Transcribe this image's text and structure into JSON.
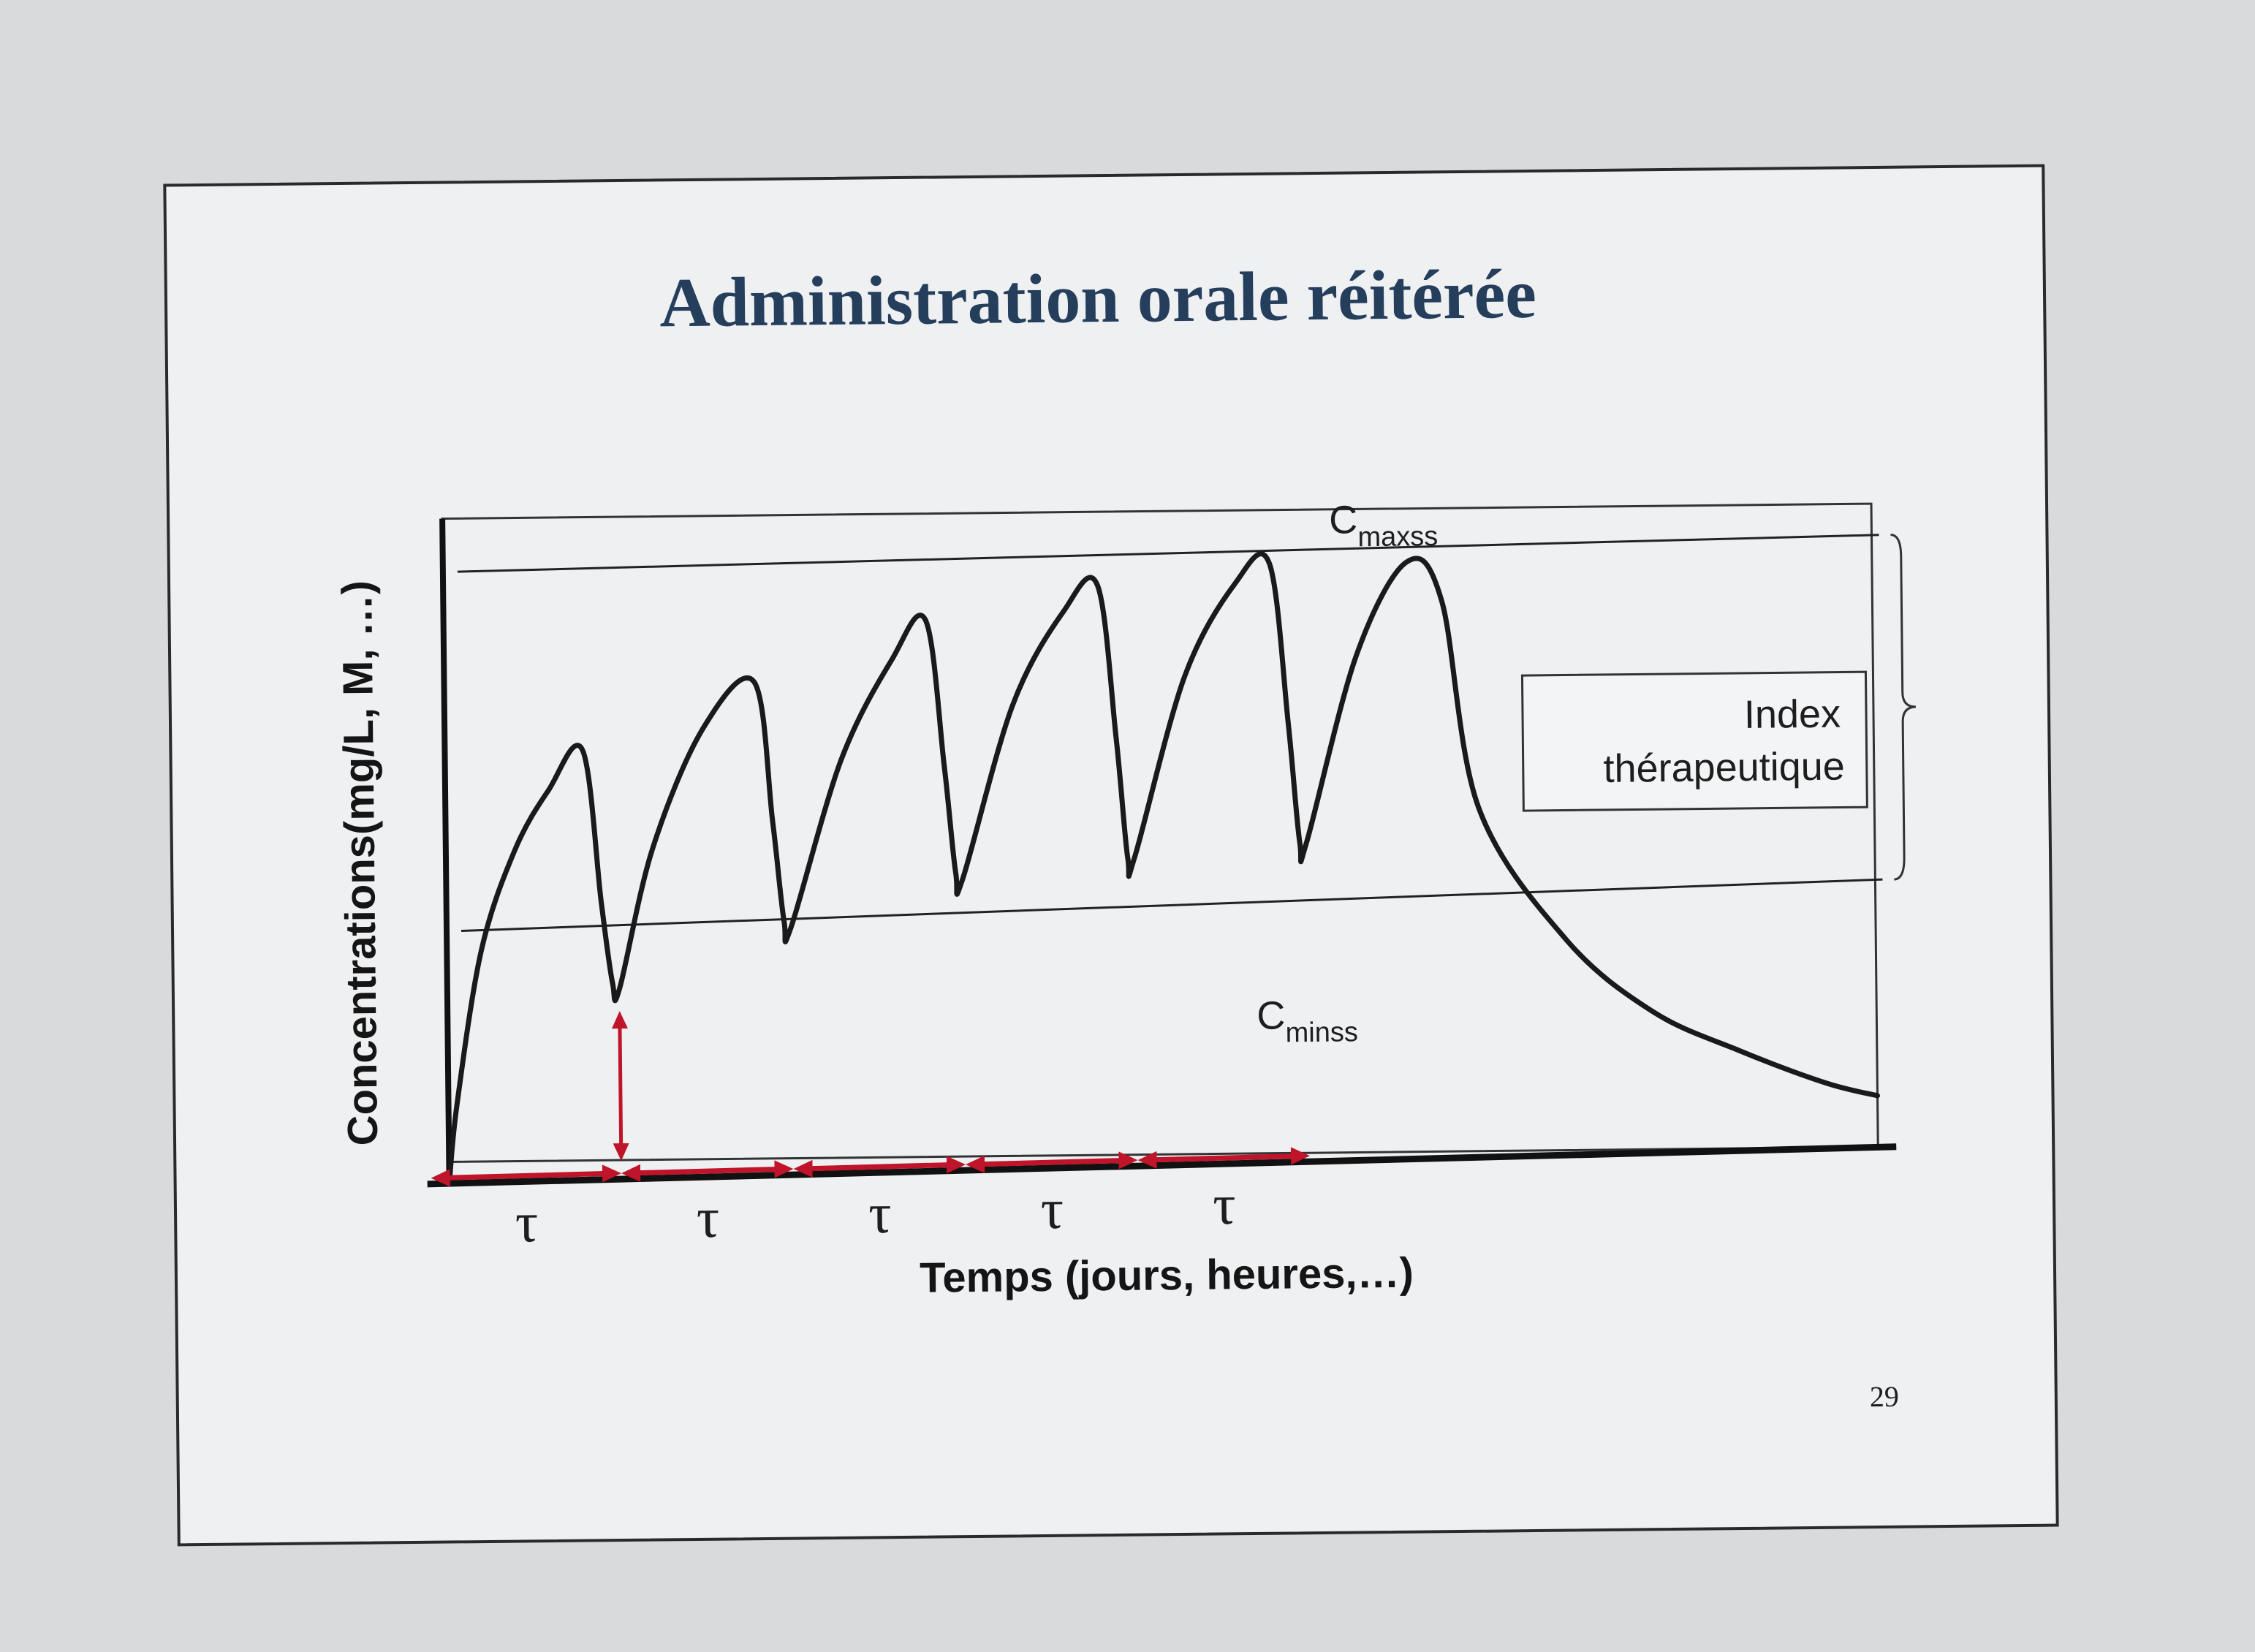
{
  "slide": {
    "title": "Administration orale réitérée",
    "page_number": "29"
  },
  "colors": {
    "title": "#243e5c",
    "curve": "#1a1a1a",
    "arrows": "#c0142a",
    "frame": "#2a2a2a",
    "slide_bg": "#eff0f2",
    "page_bg": "#d9dadc"
  },
  "chart_data": {
    "type": "line",
    "title": "",
    "xlabel": "Temps (jours, heures,…)",
    "ylabel": "Concentrations(mg/L, M, …)",
    "grid": false,
    "legend": "none",
    "cmax_label": {
      "main": "C",
      "sub": "maxss"
    },
    "cmin_label": {
      "main": "C",
      "sub": "minss"
    },
    "index_label": [
      "Index",
      "thérapeutique"
    ],
    "tau_labels": [
      "τ",
      "τ",
      "τ",
      "τ",
      "τ"
    ],
    "series": [
      {
        "x": [
          0.0,
          0.05,
          0.2,
          0.4,
          0.6,
          0.8,
          0.9,
          0.96,
          1.0,
          1.2,
          1.5,
          1.8,
          1.9,
          1.96,
          2.0,
          2.3,
          2.6,
          2.8,
          2.9,
          2.96,
          3.0,
          3.3,
          3.6,
          3.8,
          3.9,
          3.96,
          4.0,
          4.3,
          4.6,
          4.8,
          4.9,
          4.96,
          5.0,
          5.3,
          5.6,
          5.8,
          6.0,
          6.5,
          7.0,
          7.5,
          8.0,
          8.3
        ],
        "y": [
          0.0,
          1.2,
          3.5,
          5.0,
          5.9,
          6.5,
          4.2,
          3.0,
          2.9,
          5.0,
          6.8,
          7.5,
          5.4,
          3.9,
          3.8,
          6.3,
          7.8,
          8.4,
          6.2,
          4.6,
          4.5,
          7.1,
          8.5,
          8.9,
          6.6,
          4.8,
          4.8,
          7.5,
          8.9,
          9.2,
          6.8,
          5.0,
          5.0,
          7.8,
          9.2,
          8.6,
          5.5,
          3.5,
          2.4,
          1.8,
          1.3,
          1.1
        ]
      }
    ],
    "xlim": [
      0,
      8.3
    ],
    "ylim": [
      0,
      10
    ],
    "cmax_ss": 9.2,
    "cmin_ss": 3.8,
    "dosing_interval": 1,
    "dose_times": [
      0,
      1,
      2,
      3,
      4,
      5
    ]
  }
}
